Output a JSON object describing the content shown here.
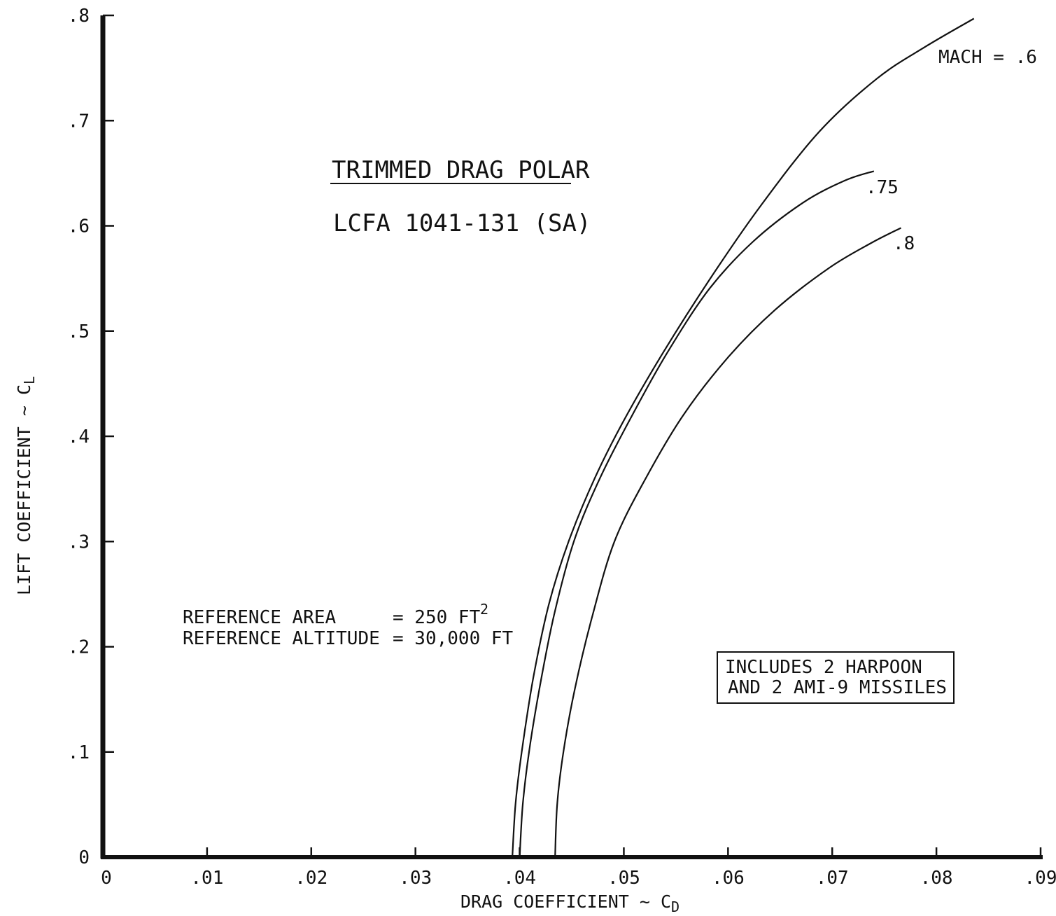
{
  "chart_data": {
    "type": "line",
    "title": "TRIMMED DRAG POLAR",
    "subtitle": "LCFA 1041-131 (SA)",
    "xlabel": "DRAG COEFFICIENT ~ C",
    "xlabel_subscript": "D",
    "ylabel": "LIFT COEFFICIENT ~ C",
    "ylabel_subscript": "L",
    "xlim": [
      0,
      0.09
    ],
    "ylim": [
      0,
      0.8
    ],
    "x_ticks": [
      0,
      0.01,
      0.02,
      0.03,
      0.04,
      0.05,
      0.06,
      0.07,
      0.08,
      0.09
    ],
    "x_tick_labels": [
      "0",
      ".01",
      ".02",
      ".03",
      ".04",
      ".05",
      ".06",
      ".07",
      ".08",
      ".09"
    ],
    "y_ticks": [
      0,
      0.1,
      0.2,
      0.3,
      0.4,
      0.5,
      0.6,
      0.7,
      0.8
    ],
    "y_tick_labels": [
      "0",
      ".1",
      ".2",
      ".3",
      ".4",
      ".5",
      ".6",
      ".7",
      ".8"
    ],
    "grid": false,
    "series": [
      {
        "name": "MACH = .6",
        "points": [
          [
            0.0393,
            0
          ],
          [
            0.0396,
            0.05
          ],
          [
            0.0402,
            0.1
          ],
          [
            0.0413,
            0.17
          ],
          [
            0.0428,
            0.24
          ],
          [
            0.0447,
            0.3
          ],
          [
            0.0472,
            0.36
          ],
          [
            0.05,
            0.415
          ],
          [
            0.0538,
            0.48
          ],
          [
            0.0583,
            0.55
          ],
          [
            0.0632,
            0.62
          ],
          [
            0.0688,
            0.69
          ],
          [
            0.0743,
            0.74
          ],
          [
            0.0789,
            0.77
          ],
          [
            0.0836,
            0.797
          ]
        ]
      },
      {
        "name": ".75",
        "points": [
          [
            0.04,
            0
          ],
          [
            0.0403,
            0.05
          ],
          [
            0.0409,
            0.1
          ],
          [
            0.0419,
            0.16
          ],
          [
            0.0433,
            0.23
          ],
          [
            0.0452,
            0.3
          ],
          [
            0.0477,
            0.36
          ],
          [
            0.0508,
            0.42
          ],
          [
            0.0542,
            0.48
          ],
          [
            0.0582,
            0.54
          ],
          [
            0.0624,
            0.585
          ],
          [
            0.0672,
            0.622
          ],
          [
            0.0712,
            0.643
          ],
          [
            0.074,
            0.652
          ]
        ]
      },
      {
        "name": ".8",
        "points": [
          [
            0.0434,
            0
          ],
          [
            0.0436,
            0.05
          ],
          [
            0.0442,
            0.1
          ],
          [
            0.0453,
            0.16
          ],
          [
            0.047,
            0.23
          ],
          [
            0.0491,
            0.3
          ],
          [
            0.0521,
            0.36
          ],
          [
            0.0557,
            0.42
          ],
          [
            0.06,
            0.475
          ],
          [
            0.0645,
            0.52
          ],
          [
            0.0697,
            0.56
          ],
          [
            0.0738,
            0.584
          ],
          [
            0.0766,
            0.598
          ]
        ]
      }
    ],
    "series_labels": [
      "MACH = .6",
      ".75",
      ".8"
    ],
    "annotations": {
      "ref_area_label": "REFERENCE AREA",
      "ref_area_value": "= 250 FT",
      "ref_area_sup": "2",
      "ref_alt_label": "REFERENCE ALTITUDE",
      "ref_alt_value": "= 30,000 FT",
      "box_line1": "INCLUDES 2 HARPOON",
      "box_line2": "AND 2 AMI-9 MISSILES"
    }
  }
}
